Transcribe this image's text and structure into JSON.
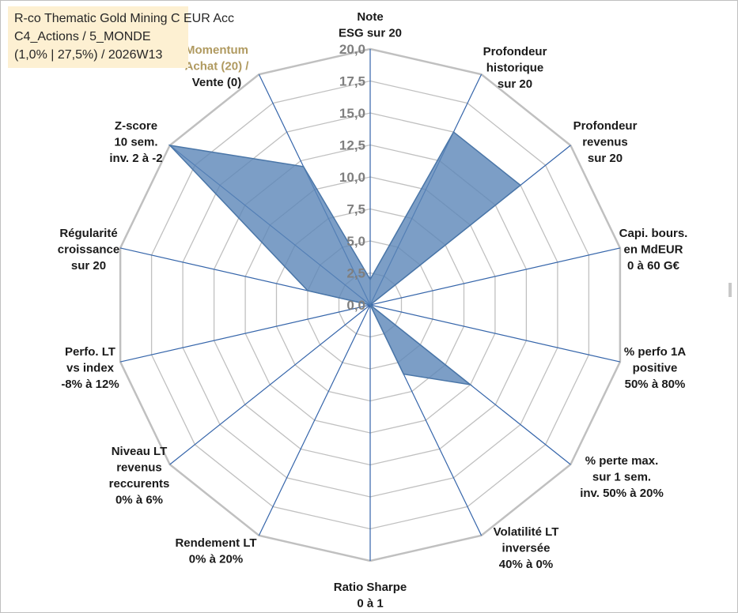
{
  "title_lines": [
    "R-co Thematic Gold Mining C EUR Acc",
    "C4_Actions / 5_MONDE",
    "(1,0% | 27,5%) / 2026W13"
  ],
  "chart_data": {
    "type": "radar",
    "rmax": 20,
    "ticks": [
      "0,0",
      "2,5",
      "5,0",
      "7,5",
      "10,0",
      "12,5",
      "15,0",
      "17,5",
      "20,0"
    ],
    "axes": [
      {
        "label": [
          "Note",
          "ESG sur 20"
        ],
        "value": 2
      },
      {
        "label": [
          "Profondeur",
          "historique",
          "sur 20"
        ],
        "value": 15
      },
      {
        "label": [
          "Profondeur",
          "revenus",
          "sur 20"
        ],
        "value": 15
      },
      {
        "label": [
          "Capi. bours.",
          "en MdEUR",
          "0 à 60 G€"
        ],
        "value": 0
      },
      {
        "label": [
          "% perfo 1A",
          "positive",
          "50% à 80%"
        ],
        "value": 0
      },
      {
        "label": [
          "% perte max.",
          "sur 1 sem.",
          "inv. 50% à 20%"
        ],
        "value": 10
      },
      {
        "label": [
          "Volatilité LT",
          "inversée",
          "40% à 0%"
        ],
        "value": 6
      },
      {
        "label": [
          "Ratio Sharpe",
          "0 à 1"
        ],
        "value": 0
      },
      {
        "label": [
          "Rendement LT",
          "0% à 20%"
        ],
        "value": 0
      },
      {
        "label": [
          "Niveau LT",
          "revenus",
          "reccurents",
          "0% à 6%"
        ],
        "value": 0
      },
      {
        "label": [
          "Perfo. LT",
          "vs index",
          "-8% à 12%"
        ],
        "value": 0
      },
      {
        "label": [
          "Régularité",
          "croissance",
          "sur 20"
        ],
        "value": 5
      },
      {
        "label": [
          "Z-score",
          "10 sem.",
          "inv. 2 à -2"
        ],
        "value": 20
      },
      {
        "label": [
          "Momentum",
          "Achat (20) /",
          "Vente (0)"
        ],
        "value": 12
      }
    ],
    "colors": {
      "fill": "#5b86b8",
      "stroke": "#4a76a8",
      "grid": "#c0c0c0",
      "axis": "#3565aa",
      "label": "#1a1a1a",
      "momentum": "#b09a60"
    }
  }
}
